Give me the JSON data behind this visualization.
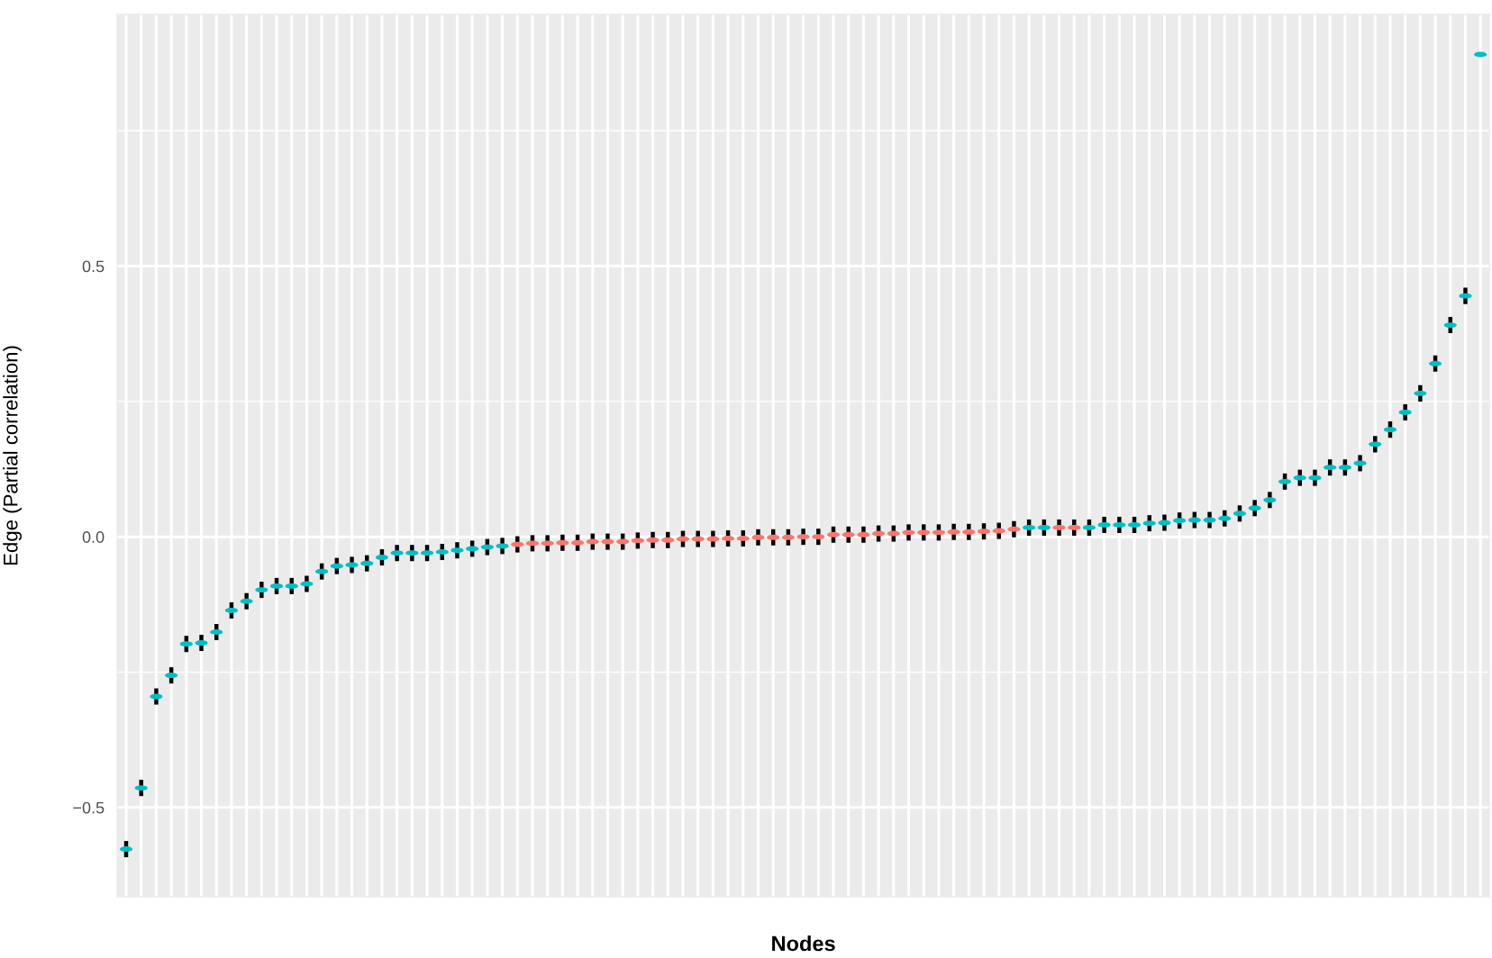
{
  "chart_data": {
    "type": "scatter",
    "xlabel": "Nodes",
    "ylabel": "Edge (Partial correlation)",
    "categories": [
      null,
      null,
      null,
      null,
      null,
      null,
      null,
      null,
      null,
      null,
      null,
      null,
      null,
      null,
      null,
      null,
      null,
      null,
      null,
      null,
      null,
      null,
      null,
      null,
      null,
      null,
      null,
      null,
      null,
      null,
      null,
      null,
      null,
      null,
      null,
      null,
      null,
      null,
      null,
      null,
      null,
      null,
      null,
      null,
      null,
      null,
      null,
      null,
      null,
      null,
      null,
      null,
      null,
      null,
      null,
      null,
      null,
      null,
      null,
      null,
      null,
      null,
      null,
      null,
      null,
      null,
      null,
      null,
      null,
      null,
      null,
      null,
      null,
      null,
      null,
      null,
      null,
      null,
      null,
      null,
      null,
      null,
      null,
      null,
      null,
      null,
      null,
      null,
      null,
      null,
      null
    ],
    "values": [
      -0.577,
      -0.464,
      -0.295,
      -0.256,
      -0.198,
      -0.196,
      -0.176,
      -0.136,
      -0.119,
      -0.098,
      -0.091,
      -0.091,
      -0.087,
      -0.064,
      -0.054,
      -0.052,
      -0.049,
      -0.038,
      -0.03,
      -0.03,
      -0.03,
      -0.028,
      -0.025,
      -0.022,
      -0.019,
      -0.017,
      -0.014,
      -0.012,
      -0.012,
      -0.011,
      -0.011,
      -0.009,
      -0.009,
      -0.009,
      -0.007,
      -0.006,
      -0.006,
      -0.004,
      -0.004,
      -0.004,
      -0.003,
      -0.003,
      -0.001,
      -0.001,
      -0.001,
      0.0,
      0.0,
      0.004,
      0.004,
      0.004,
      0.006,
      0.006,
      0.008,
      0.008,
      0.008,
      0.009,
      0.009,
      0.01,
      0.011,
      0.014,
      0.017,
      0.017,
      0.017,
      0.017,
      0.017,
      0.022,
      0.022,
      0.022,
      0.025,
      0.026,
      0.03,
      0.031,
      0.031,
      0.034,
      0.043,
      0.053,
      0.068,
      0.102,
      0.109,
      0.109,
      0.128,
      0.128,
      0.136,
      0.171,
      0.198,
      0.23,
      0.265,
      0.32,
      0.391,
      0.445,
      0.891
    ],
    "colors": [
      "#00bfc4",
      "#00bfc4",
      "#00bfc4",
      "#00bfc4",
      "#00bfc4",
      "#00bfc4",
      "#00bfc4",
      "#00bfc4",
      "#00bfc4",
      "#00bfc4",
      "#00bfc4",
      "#00bfc4",
      "#00bfc4",
      "#00bfc4",
      "#00bfc4",
      "#00bfc4",
      "#00bfc4",
      "#00bfc4",
      "#00bfc4",
      "#00bfc4",
      "#00bfc4",
      "#00bfc4",
      "#00bfc4",
      "#00bfc4",
      "#00bfc4",
      "#00bfc4",
      "#f8766d",
      "#f8766d",
      "#f8766d",
      "#f8766d",
      "#f8766d",
      "#f8766d",
      "#f8766d",
      "#f8766d",
      "#f8766d",
      "#f8766d",
      "#f8766d",
      "#f8766d",
      "#f8766d",
      "#f8766d",
      "#f8766d",
      "#f8766d",
      "#f8766d",
      "#f8766d",
      "#f8766d",
      "#f8766d",
      "#f8766d",
      "#f8766d",
      "#f8766d",
      "#f8766d",
      "#f8766d",
      "#f8766d",
      "#f8766d",
      "#f8766d",
      "#f8766d",
      "#f8766d",
      "#f8766d",
      "#f8766d",
      "#f8766d",
      "#f8766d",
      "#00bfc4",
      "#00bfc4",
      "#f8766d",
      "#f8766d",
      "#00bfc4",
      "#00bfc4",
      "#00bfc4",
      "#00bfc4",
      "#00bfc4",
      "#00bfc4",
      "#00bfc4",
      "#00bfc4",
      "#00bfc4",
      "#00bfc4",
      "#00bfc4",
      "#00bfc4",
      "#00bfc4",
      "#00bfc4",
      "#00bfc4",
      "#00bfc4",
      "#00bfc4",
      "#00bfc4",
      "#00bfc4",
      "#00bfc4",
      "#00bfc4",
      "#00bfc4",
      "#00bfc4",
      "#00bfc4",
      "#00bfc4",
      "#00bfc4",
      "#00bfc4"
    ],
    "errors": [
      0.015,
      0.015,
      0.015,
      0.015,
      0.015,
      0.015,
      0.015,
      0.015,
      0.015,
      0.015,
      0.015,
      0.015,
      0.015,
      0.015,
      0.015,
      0.015,
      0.015,
      0.015,
      0.015,
      0.015,
      0.015,
      0.015,
      0.015,
      0.015,
      0.015,
      0.015,
      0.015,
      0.015,
      0.015,
      0.015,
      0.015,
      0.015,
      0.015,
      0.015,
      0.015,
      0.015,
      0.015,
      0.015,
      0.015,
      0.015,
      0.015,
      0.015,
      0.015,
      0.015,
      0.015,
      0.015,
      0.015,
      0.015,
      0.015,
      0.015,
      0.015,
      0.015,
      0.015,
      0.015,
      0.015,
      0.015,
      0.015,
      0.015,
      0.015,
      0.015,
      0.015,
      0.015,
      0.015,
      0.015,
      0.015,
      0.015,
      0.015,
      0.015,
      0.015,
      0.015,
      0.015,
      0.015,
      0.015,
      0.015,
      0.015,
      0.015,
      0.015,
      0.015,
      0.015,
      0.015,
      0.015,
      0.015,
      0.015,
      0.015,
      0.015,
      0.015,
      0.015,
      0.015,
      0.015,
      0.015,
      null
    ],
    "ylim": [
      -0.665,
      0.965
    ],
    "yticks": [
      {
        "value": -0.5,
        "label": "−0.5"
      },
      {
        "value": 0,
        "label": "0.0"
      },
      0.5
    ],
    "grid": true
  }
}
